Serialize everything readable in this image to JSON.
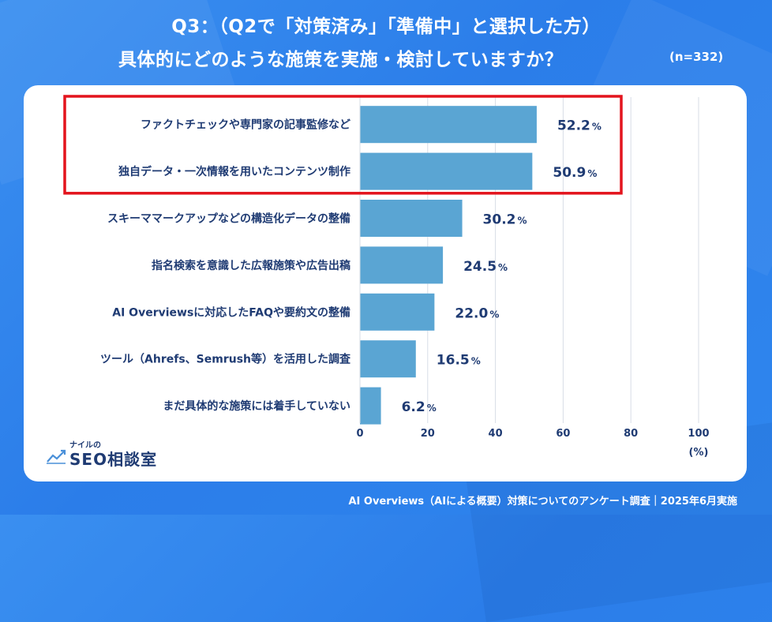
{
  "header": {
    "title_line1": "Q3：（Q2で「対策済み」「準備中」と選択した方）",
    "title_line2": "具体的にどのような施策を実施・検討していますか？",
    "sample_size": "(n=332)"
  },
  "colors": {
    "background": "#2f86ee",
    "bar": "#5aa5d3",
    "text": "#1f3b73",
    "highlight": "#e3141d",
    "grid": "#d7dde6"
  },
  "chart_data": {
    "type": "bar",
    "orientation": "horizontal",
    "categories": [
      "ファクトチェックや専門家の記事監修など",
      "独自データ・一次情報を用いたコンテンツ制作",
      "スキーママークアップなどの構造化データの整備",
      "指名検索を意識した広報施策や広告出稿",
      "AI Overviewsに対応したFAQや要約文の整備",
      "ツール（Ahrefs、Semrush等）を活用した調査",
      "まだ具体的な施策には着手していない"
    ],
    "values": [
      52.2,
      50.9,
      30.2,
      24.5,
      22.0,
      16.5,
      6.2
    ],
    "value_labels": [
      "52.2",
      "50.9",
      "30.2",
      "24.5",
      "22.0",
      "16.5",
      "6.2"
    ],
    "value_unit": "%",
    "xlim": [
      0,
      100
    ],
    "xticks": [
      0,
      20,
      40,
      60,
      80,
      100
    ],
    "xlabel": "(%)",
    "grid": true,
    "highlighted_categories": [
      0,
      1
    ]
  },
  "logo": {
    "small_text": "ナイルの",
    "main_text": "SEO相談室"
  },
  "footer": {
    "text": "AI Overviews（AIによる概要）対策についてのアンケート調査｜2025年6月実施"
  }
}
